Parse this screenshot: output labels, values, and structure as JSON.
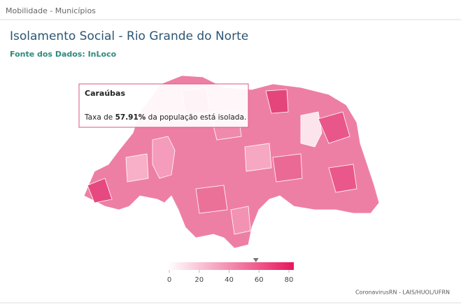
{
  "header": {
    "title": "Mobilidade - Municípios"
  },
  "title": "Isolamento Social - Rio Grande do Norte",
  "subtitle": "Fonte dos Dados: InLoco",
  "tooltip": {
    "name": "Caraúbas",
    "prefix": "Taxa de",
    "value": 57.91,
    "value_label": "57.91%",
    "suffix": "da população está isolada."
  },
  "legend": {
    "lim": [
      0,
      80
    ],
    "ticks": [
      0,
      20,
      40,
      60,
      80
    ],
    "colors": [
      "#ffffff",
      "#e8175d"
    ]
  },
  "footer": "CoronavirusRN - LAIS/HUOL/UFRN"
}
